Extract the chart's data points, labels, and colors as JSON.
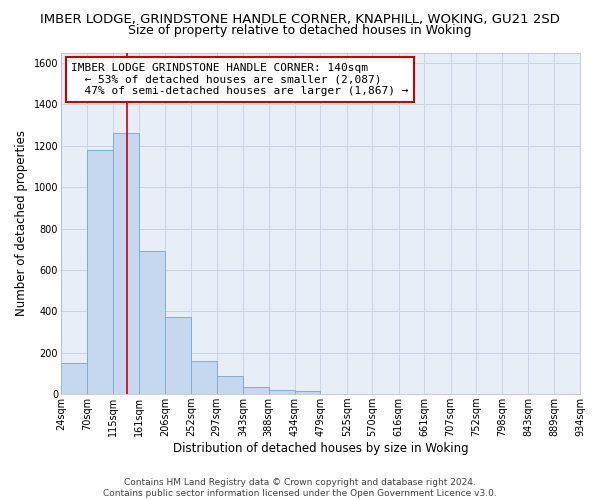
{
  "title": "IMBER LODGE, GRINDSTONE HANDLE CORNER, KNAPHILL, WOKING, GU21 2SD",
  "subtitle": "Size of property relative to detached houses in Woking",
  "xlabel": "Distribution of detached houses by size in Woking",
  "ylabel": "Number of detached properties",
  "bar_edges": [
    24,
    70,
    115,
    161,
    206,
    252,
    297,
    343,
    388,
    434,
    479,
    525,
    570,
    616,
    661,
    707,
    752,
    798,
    843,
    889,
    934
  ],
  "bar_heights": [
    150,
    1180,
    1260,
    690,
    375,
    160,
    90,
    35,
    20,
    15,
    0,
    0,
    0,
    0,
    0,
    0,
    0,
    0,
    0,
    0
  ],
  "bar_color": "#c5d8f0",
  "bar_edge_color": "#7eadd4",
  "vline_x": 140,
  "vline_color": "#cc0000",
  "ylim": [
    0,
    1650
  ],
  "yticks": [
    0,
    200,
    400,
    600,
    800,
    1000,
    1200,
    1400,
    1600
  ],
  "tick_labels": [
    "24sqm",
    "70sqm",
    "115sqm",
    "161sqm",
    "206sqm",
    "252sqm",
    "297sqm",
    "343sqm",
    "388sqm",
    "434sqm",
    "479sqm",
    "525sqm",
    "570sqm",
    "616sqm",
    "661sqm",
    "707sqm",
    "752sqm",
    "798sqm",
    "843sqm",
    "889sqm",
    "934sqm"
  ],
  "annotation_title": "IMBER LODGE GRINDSTONE HANDLE CORNER: 140sqm",
  "annotation_line1": "← 53% of detached houses are smaller (2,087)",
  "annotation_line2": "47% of semi-detached houses are larger (1,867) →",
  "footer1": "Contains HM Land Registry data © Crown copyright and database right 2024.",
  "footer2": "Contains public sector information licensed under the Open Government Licence v3.0.",
  "bg_color": "#ffffff",
  "plot_bg_color": "#e8eef8",
  "grid_color": "#c8d4e8",
  "title_fontsize": 9.5,
  "subtitle_fontsize": 9,
  "axis_label_fontsize": 8.5,
  "tick_fontsize": 7,
  "annotation_fontsize": 8,
  "footer_fontsize": 6.5
}
